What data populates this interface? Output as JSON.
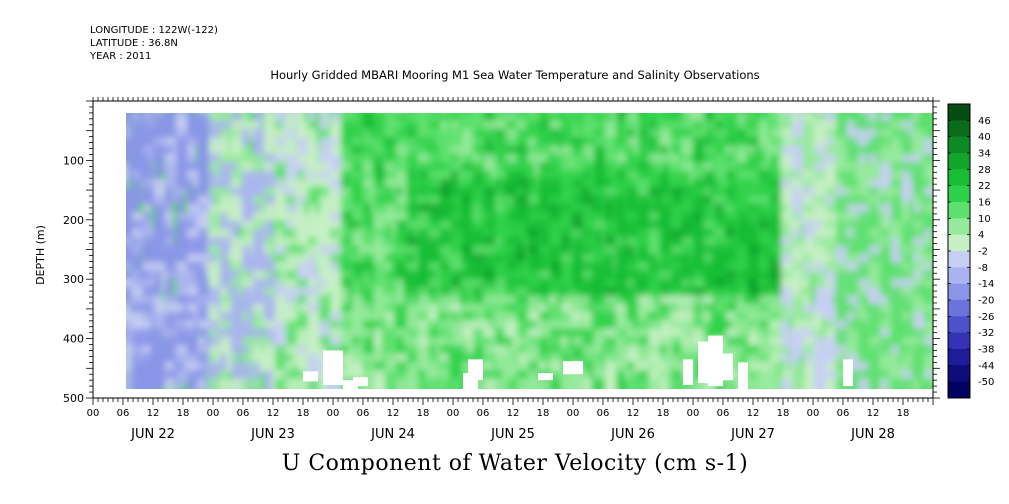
{
  "header": {
    "longitude": "LONGITUDE : 122W(-122)",
    "latitude": "LATITUDE : 36.8N",
    "year": "YEAR : 2011"
  },
  "chart_data": {
    "type": "heatmap",
    "title": "Hourly Gridded MBARI Mooring M1 Sea Water Temperature and Salinity Observations",
    "subtitle": "U Component of Water Velocity (cm s-1)",
    "ylabel": "DEPTH (m)",
    "xlabel": "",
    "ylim": [
      500,
      0
    ],
    "y_ticks": [
      100,
      200,
      300,
      400,
      500
    ],
    "x_range_hours": [
      0,
      168
    ],
    "x_tick_labels": [
      "00",
      "06",
      "12",
      "18",
      "00",
      "06",
      "12",
      "18",
      "00",
      "06",
      "12",
      "18",
      "00",
      "06",
      "12",
      "18",
      "00",
      "06",
      "12",
      "18",
      "00",
      "06",
      "12",
      "18",
      "00",
      "06",
      "12",
      "18"
    ],
    "day_labels": [
      "JUN 22",
      "JUN 23",
      "JUN 24",
      "JUN 25",
      "JUN 26",
      "JUN 27",
      "JUN 28"
    ],
    "data_extent": {
      "x_hours": [
        6,
        168
      ],
      "depth_m": [
        20,
        485
      ]
    },
    "colorbar": {
      "levels": [
        46,
        40,
        34,
        28,
        22,
        16,
        10,
        4,
        -2,
        -8,
        -14,
        -20,
        -26,
        -32,
        -38,
        -44,
        -50
      ],
      "colors": [
        "#064d14",
        "#0a6b1c",
        "#0e8a25",
        "#11a52c",
        "#17bd35",
        "#2fd14a",
        "#5ee070",
        "#97ea9c",
        "#c8f0c5",
        "#c8cff5",
        "#aab4f0",
        "#8b95e8",
        "#6b73dc",
        "#4d52cb",
        "#3433b5",
        "#1e1d99",
        "#0d0c78",
        "#000060"
      ]
    },
    "colors": {
      "green_mid": "#4bdc5c",
      "green_dark": "#17c035",
      "blue_light": "#a7b2f1",
      "blue_mid": "#8d97e7"
    }
  }
}
